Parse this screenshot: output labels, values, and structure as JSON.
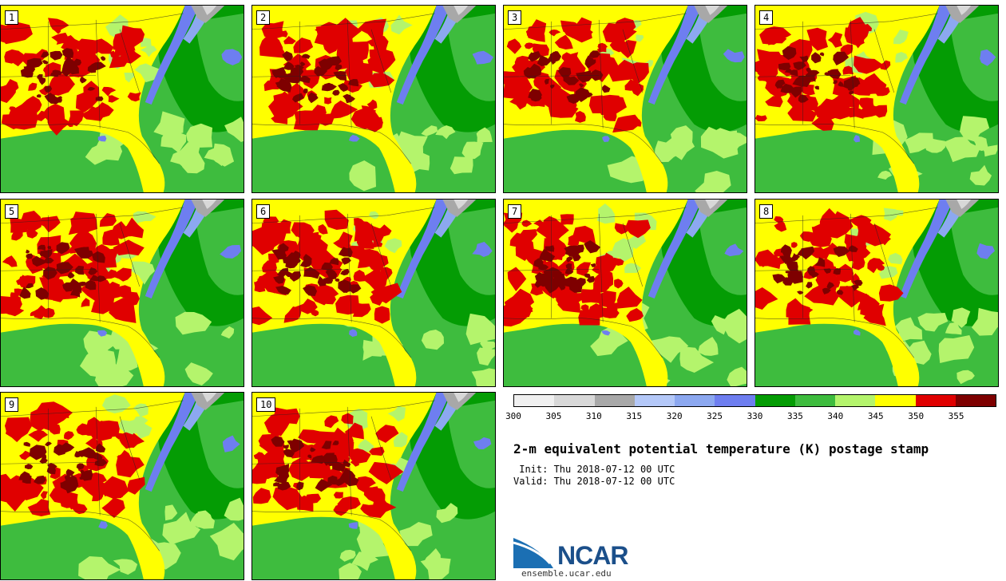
{
  "title": "2-m equivalent potential temperature (K) postage stamp",
  "init_label": " Init: Thu 2018-07-12 00 UTC",
  "valid_label": "Valid: Thu 2018-07-12 00 UTC",
  "logo_text": "NCAR",
  "logo_url": "ensemble.ucar.edu",
  "members": [
    "1",
    "2",
    "3",
    "4",
    "5",
    "6",
    "7",
    "8",
    "9",
    "10"
  ],
  "colorbar": {
    "ticks": [
      "300",
      "305",
      "310",
      "315",
      "320",
      "325",
      "330",
      "335",
      "340",
      "345",
      "350",
      "355"
    ],
    "colors": [
      "#f0f0f0",
      "#d8d8d8",
      "#a8a8a8",
      "#b4c8f8",
      "#8ca8f0",
      "#6e7ef0",
      "#049c04",
      "#3ebc3e",
      "#b4f46c",
      "#ffff00",
      "#e00000",
      "#7e0000"
    ]
  }
}
